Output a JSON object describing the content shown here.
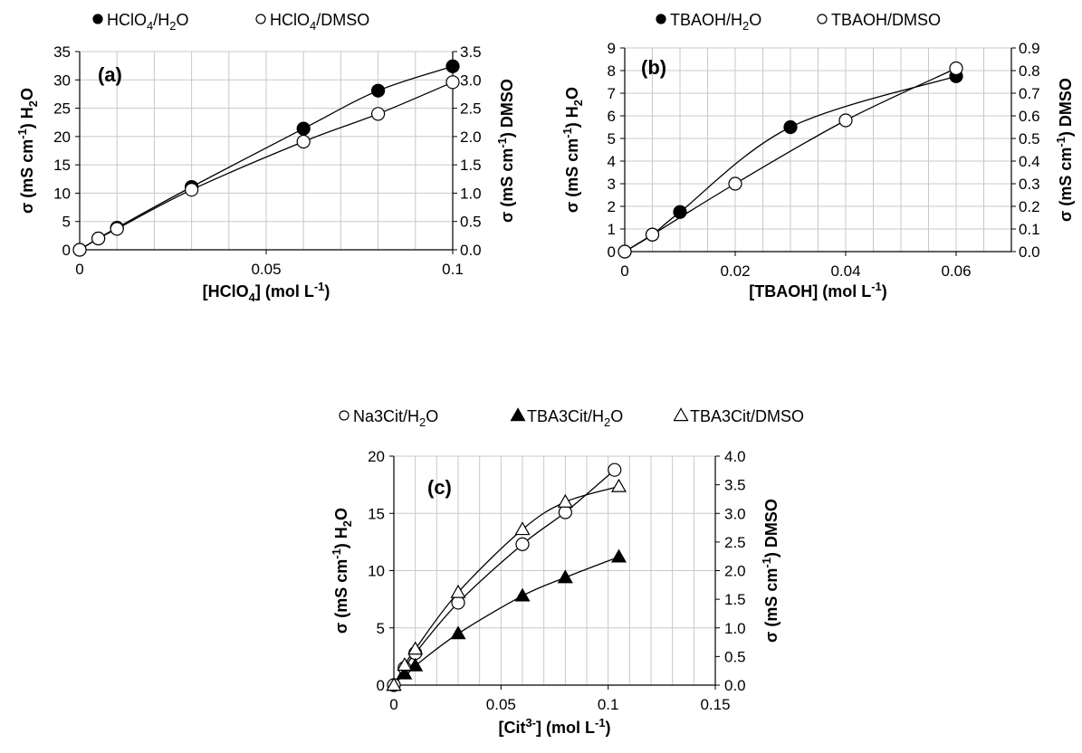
{
  "chart_data": [
    {
      "type": "scatter",
      "panel_label": "(a)",
      "xlabel": "[HClO4] (mol L-1)",
      "ylabel_left": "σ (mS cm-1) H2O",
      "ylabel_right": "σ (mS cm-1) DMSO",
      "xlim": [
        0,
        0.1
      ],
      "x_ticks": [
        "0",
        "0.05",
        "0.1"
      ],
      "ylim_left": [
        0,
        35
      ],
      "y_left_ticks": [
        "0",
        "5",
        "10",
        "15",
        "20",
        "25",
        "30",
        "35"
      ],
      "ylim_right": [
        0,
        3.5
      ],
      "y_right_ticks": [
        "0.0",
        "0.5",
        "1.0",
        "1.5",
        "2.0",
        "2.5",
        "3.0",
        "3.5"
      ],
      "grid": true,
      "legend_position": "top",
      "series": [
        {
          "name": "HClO4/H2O",
          "marker": "filled-circle",
          "axis": "left",
          "x": [
            0,
            0.005,
            0.01,
            0.03,
            0.06,
            0.08,
            0.1
          ],
          "y": [
            0,
            2.0,
            3.9,
            11.1,
            21.4,
            28.1,
            32.4
          ]
        },
        {
          "name": "HClO4/DMSO",
          "marker": "open-circle",
          "axis": "right",
          "x": [
            0,
            0.005,
            0.01,
            0.03,
            0.06,
            0.08,
            0.1
          ],
          "y": [
            0,
            0.2,
            0.37,
            1.06,
            1.91,
            2.4,
            2.96
          ]
        }
      ]
    },
    {
      "type": "scatter",
      "panel_label": "(b)",
      "xlabel": "[TBAOH] (mol L-1)",
      "ylabel_left": "σ (mS cm-1) H2O",
      "ylabel_right": "σ (mS cm-1) DMSO",
      "xlim": [
        0,
        0.07
      ],
      "x_ticks": [
        "0",
        "0.02",
        "0.04",
        "0.06"
      ],
      "ylim_left": [
        0,
        9
      ],
      "y_left_ticks": [
        "0",
        "1",
        "2",
        "3",
        "4",
        "5",
        "6",
        "7",
        "8",
        "9"
      ],
      "ylim_right": [
        0,
        0.9
      ],
      "y_right_ticks": [
        "0.0",
        "0.1",
        "0.2",
        "0.3",
        "0.4",
        "0.5",
        "0.6",
        "0.7",
        "0.8",
        "0.9"
      ],
      "grid": true,
      "legend_position": "top",
      "series": [
        {
          "name": "TBAOH/H2O",
          "marker": "filled-circle",
          "axis": "left",
          "x": [
            0,
            0.005,
            0.01,
            0.03,
            0.06
          ],
          "y": [
            0,
            0.75,
            1.75,
            5.5,
            7.75
          ]
        },
        {
          "name": "TBAOH/DMSO",
          "marker": "open-circle",
          "axis": "right",
          "x": [
            0,
            0.005,
            0.02,
            0.04,
            0.06
          ],
          "y": [
            0,
            0.075,
            0.3,
            0.58,
            0.81
          ]
        }
      ]
    },
    {
      "type": "scatter",
      "panel_label": "(c)",
      "xlabel": "[Cit3-] (mol L-1)",
      "ylabel_left": "σ (mS cm-1) H2O",
      "ylabel_right": "σ (mS cm-1) DMSO",
      "xlim": [
        0,
        0.15
      ],
      "x_ticks": [
        "0",
        "0.05",
        "0.1",
        "0.15"
      ],
      "ylim_left": [
        0,
        20
      ],
      "y_left_ticks": [
        "0",
        "5",
        "10",
        "15",
        "20"
      ],
      "ylim_right": [
        0,
        4.0
      ],
      "y_right_ticks": [
        "0.0",
        "0.5",
        "1.0",
        "1.5",
        "2.0",
        "2.5",
        "3.0",
        "3.5",
        "4.0"
      ],
      "grid": true,
      "legend_position": "top",
      "series": [
        {
          "name": "Na3Cit/H2O",
          "marker": "open-circle",
          "axis": "left",
          "x": [
            0,
            0.005,
            0.01,
            0.03,
            0.06,
            0.08,
            0.103
          ],
          "y": [
            0,
            1.5,
            2.8,
            7.2,
            12.3,
            15.1,
            18.8
          ]
        },
        {
          "name": "TBA3Cit/H2O",
          "marker": "filled-triangle",
          "axis": "left",
          "x": [
            0,
            0.005,
            0.01,
            0.03,
            0.06,
            0.08,
            0.105
          ],
          "y": [
            0,
            1.0,
            1.7,
            4.5,
            7.8,
            9.4,
            11.2
          ]
        },
        {
          "name": "TBA3Cit/DMSO",
          "marker": "open-triangle",
          "axis": "right",
          "x": [
            0,
            0.005,
            0.01,
            0.03,
            0.06,
            0.08,
            0.105
          ],
          "y": [
            0,
            0.35,
            0.63,
            1.62,
            2.72,
            3.2,
            3.47
          ]
        }
      ]
    }
  ]
}
